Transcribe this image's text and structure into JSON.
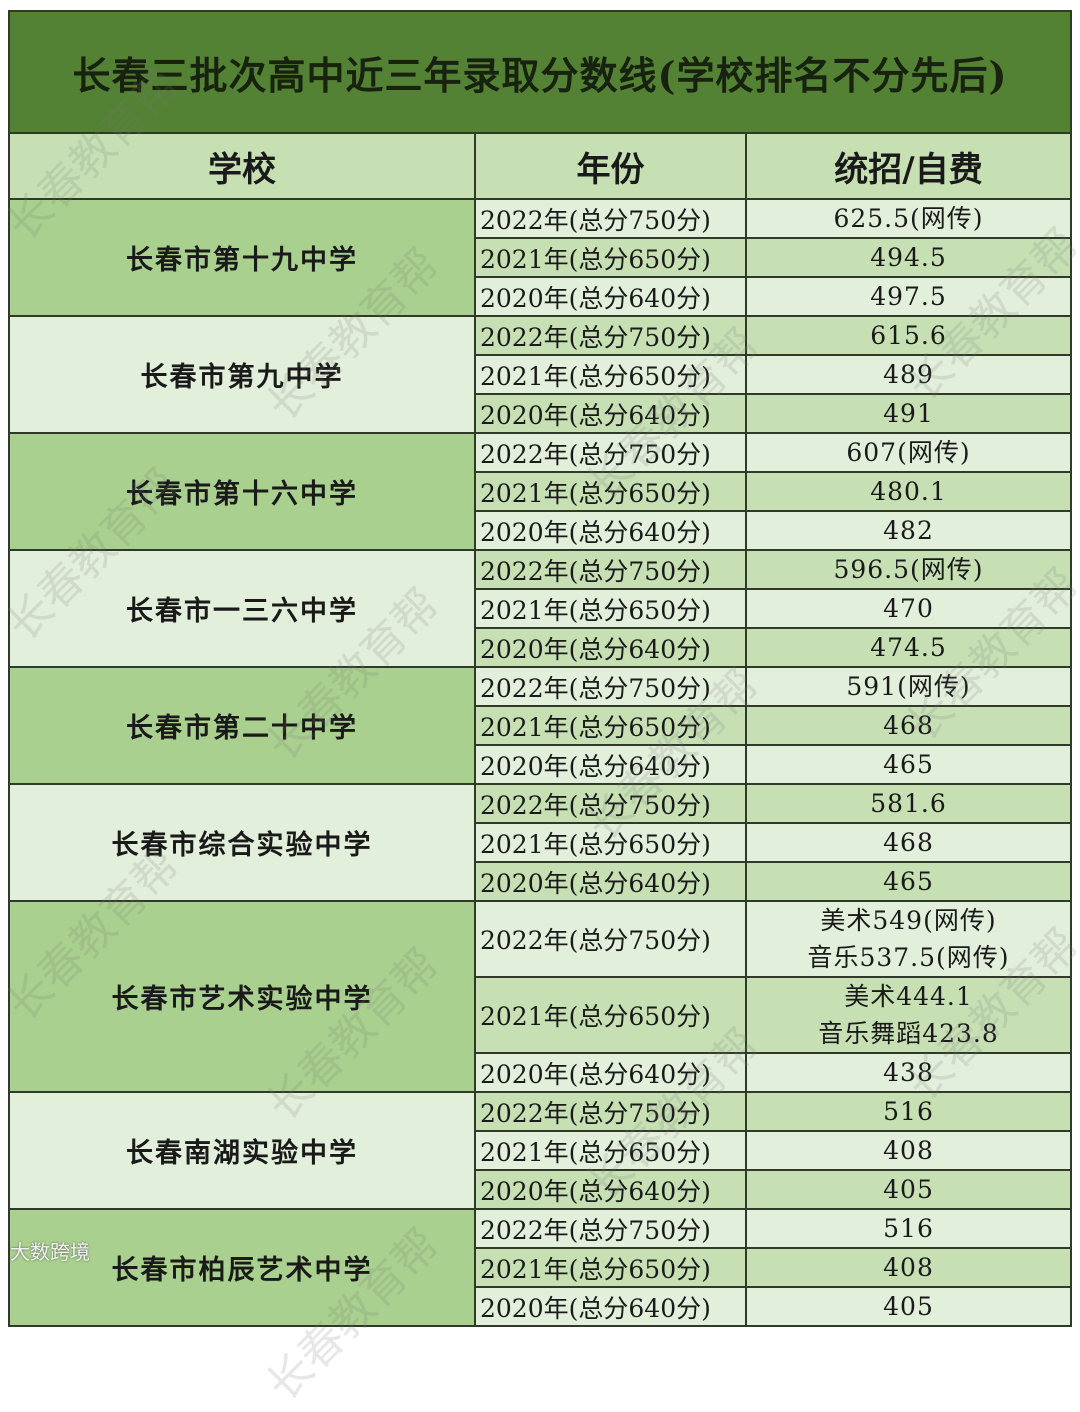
{
  "title": "长春三批次高中近三年录取分数线(学校排名不分先后)",
  "headers": {
    "school": "学校",
    "year": "年份",
    "score": "统招/自费"
  },
  "colors": {
    "title_bg": "#548235",
    "header_bg": "#c6e0b4",
    "school_green": "#a9d08e",
    "light": "#e2efda",
    "row_green": "#c6e0b4"
  },
  "groups": [
    {
      "school": "长春市第十九中学",
      "rows": [
        {
          "year": "2022年(总分750分)",
          "score": [
            "625.5(网传)"
          ]
        },
        {
          "year": "2021年(总分650分)",
          "score": [
            "494.5"
          ]
        },
        {
          "year": "2020年(总分640分)",
          "score": [
            "497.5"
          ]
        }
      ]
    },
    {
      "school": "长春市第九中学",
      "rows": [
        {
          "year": "2022年(总分750分)",
          "score": [
            "615.6"
          ]
        },
        {
          "year": "2021年(总分650分)",
          "score": [
            "489"
          ]
        },
        {
          "year": "2020年(总分640分)",
          "score": [
            "491"
          ]
        }
      ]
    },
    {
      "school": "长春市第十六中学",
      "rows": [
        {
          "year": "2022年(总分750分)",
          "score": [
            "607(网传)"
          ]
        },
        {
          "year": "2021年(总分650分)",
          "score": [
            "480.1"
          ]
        },
        {
          "year": "2020年(总分640分)",
          "score": [
            "482"
          ]
        }
      ]
    },
    {
      "school": "长春市一三六中学",
      "rows": [
        {
          "year": "2022年(总分750分)",
          "score": [
            "596.5(网传)"
          ]
        },
        {
          "year": "2021年(总分650分)",
          "score": [
            "470"
          ]
        },
        {
          "year": "2020年(总分640分)",
          "score": [
            "474.5"
          ]
        }
      ]
    },
    {
      "school": "长春市第二十中学",
      "rows": [
        {
          "year": "2022年(总分750分)",
          "score": [
            "591(网传)"
          ]
        },
        {
          "year": "2021年(总分650分)",
          "score": [
            "468"
          ]
        },
        {
          "year": "2020年(总分640分)",
          "score": [
            "465"
          ]
        }
      ]
    },
    {
      "school": "长春市综合实验中学",
      "rows": [
        {
          "year": "2022年(总分750分)",
          "score": [
            "581.6"
          ]
        },
        {
          "year": "2021年(总分650分)",
          "score": [
            "468"
          ]
        },
        {
          "year": "2020年(总分640分)",
          "score": [
            "465"
          ]
        }
      ]
    },
    {
      "school": "长春市艺术实验中学",
      "rows": [
        {
          "year": "2022年(总分750分)",
          "score": [
            "美术549(网传)",
            "音乐537.5(网传)"
          ]
        },
        {
          "year": "2021年(总分650分)",
          "score": [
            "美术444.1",
            "音乐舞蹈423.8"
          ]
        },
        {
          "year": "2020年(总分640分)",
          "score": [
            "438"
          ]
        }
      ]
    },
    {
      "school": "长春南湖实验中学",
      "rows": [
        {
          "year": "2022年(总分750分)",
          "score": [
            "516"
          ]
        },
        {
          "year": "2021年(总分650分)",
          "score": [
            "408"
          ]
        },
        {
          "year": "2020年(总分640分)",
          "score": [
            "405"
          ]
        }
      ]
    },
    {
      "school": "长春市柏辰艺术中学",
      "rows": [
        {
          "year": "2022年(总分750分)",
          "score": [
            "516"
          ]
        },
        {
          "year": "2021年(总分650分)",
          "score": [
            "408"
          ]
        },
        {
          "year": "2020年(总分640分)",
          "score": [
            "405"
          ]
        }
      ]
    }
  ],
  "watermark": "长春教育帮",
  "logo": "大数跨境"
}
